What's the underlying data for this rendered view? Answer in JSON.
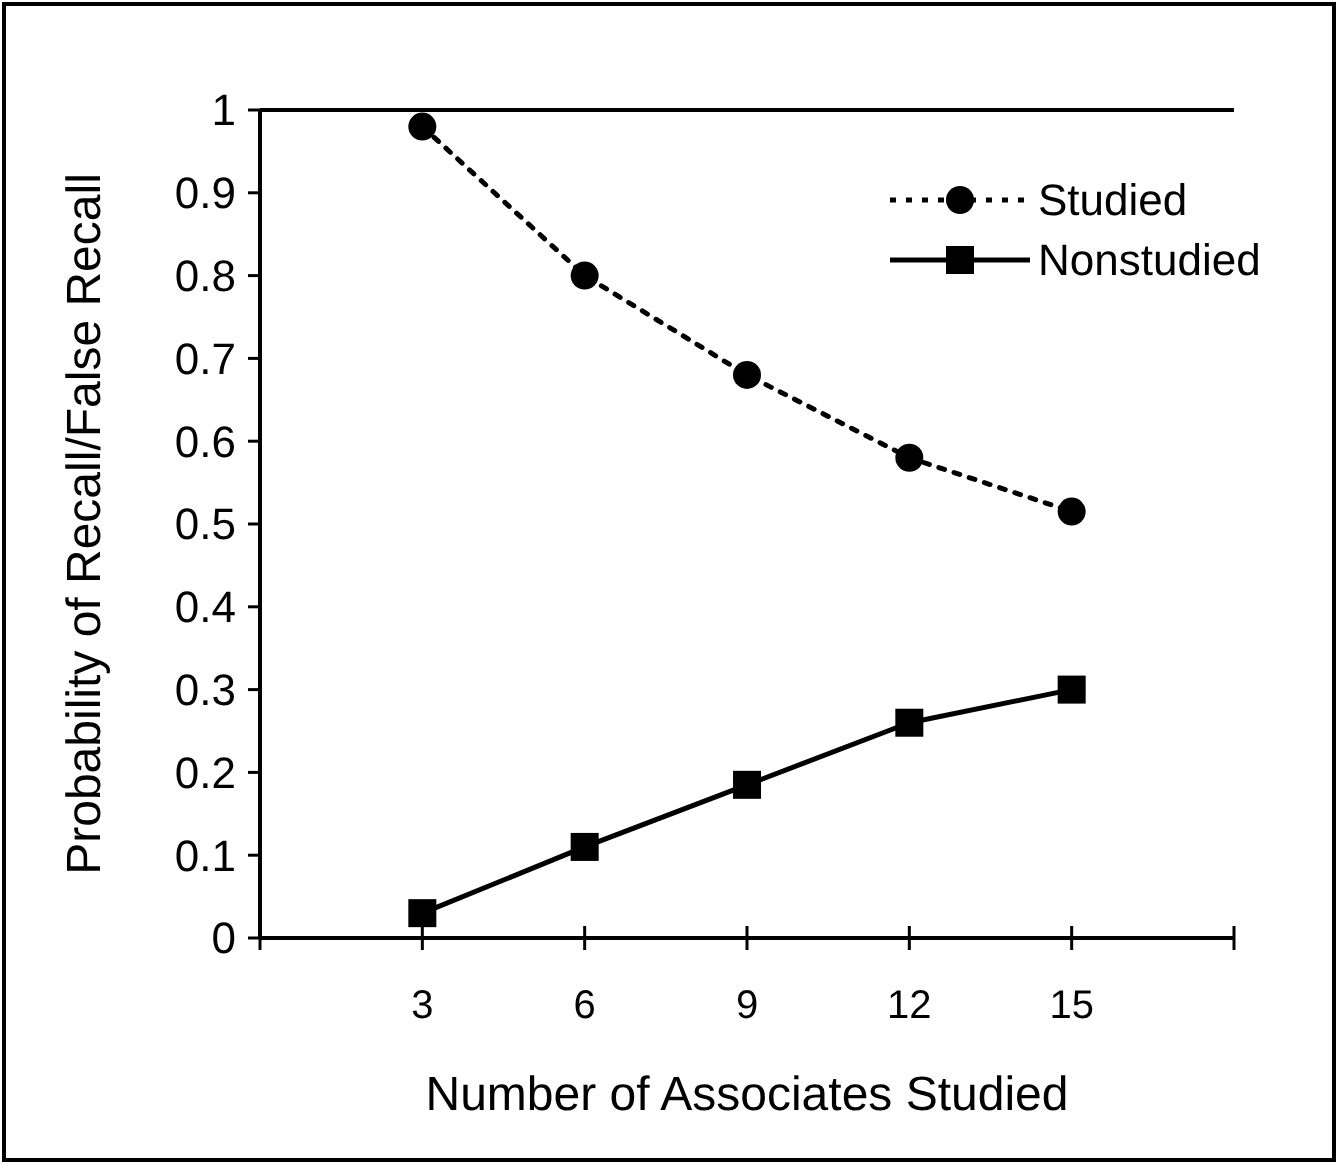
{
  "chart_data": {
    "type": "line",
    "xlabel": "Number of Associates Studied",
    "ylabel": "Probability of Recall/False Recall",
    "x": [
      3,
      6,
      9,
      12,
      15
    ],
    "series": [
      {
        "name": "Studied",
        "color": "#000000",
        "values": [
          0.98,
          0.8,
          0.68,
          0.58,
          0.515
        ],
        "marker": "circle",
        "line_style": "dotted"
      },
      {
        "name": "Nonstudied",
        "color": "#000000",
        "values": [
          0.03,
          0.11,
          0.185,
          0.26,
          0.3
        ],
        "marker": "square",
        "line_style": "solid"
      }
    ],
    "xlim": [
      0,
      18
    ],
    "xticks": [
      {
        "value": 0,
        "label": null
      },
      3,
      6,
      9,
      12,
      15,
      {
        "value": 18,
        "label": null
      }
    ],
    "ylim": [
      0,
      1
    ],
    "yticks": [
      0,
      0.1,
      0.2,
      0.3,
      0.4,
      0.5,
      0.6,
      0.7,
      0.8,
      0.9,
      1
    ],
    "legend": "top right",
    "grid": false
  }
}
